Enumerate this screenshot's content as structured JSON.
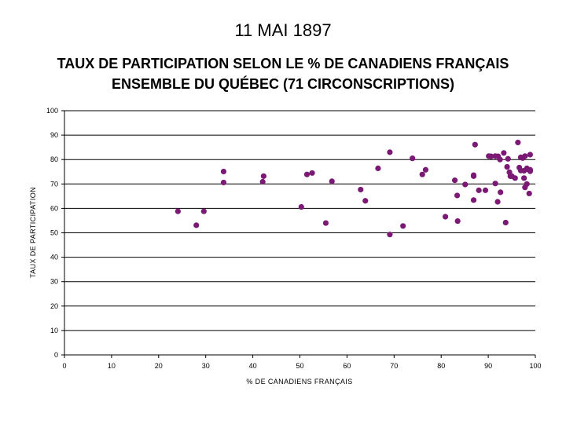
{
  "page": {
    "date_title": "11 MAI 1897",
    "title_line1": "TAUX DE PARTICIPATION SELON LE % DE CANADIENS FRANÇAIS",
    "title_line2": "ENSEMBLE DU QUÉBEC (71 CIRCONSCRIPTIONS)"
  },
  "chart_data": {
    "type": "scatter",
    "title": "TAUX DE PARTICIPATION SELON LE % DE CANADIENS FRANÇAIS ENSEMBLE DU QUÉBEC (71 CIRCONSCRIPTIONS)",
    "xlabel": "% DE CANADIENS FRANÇAIS",
    "ylabel": "TAUX DE PARTICIPATION",
    "xlim": [
      0,
      100
    ],
    "ylim": [
      0,
      100
    ],
    "x_ticks": [
      0,
      10,
      20,
      30,
      40,
      50,
      60,
      70,
      80,
      90,
      100
    ],
    "y_ticks": [
      0,
      10,
      20,
      30,
      40,
      50,
      60,
      70,
      80,
      90,
      100
    ],
    "grid": "horizontal",
    "point_color": "#7b1a74",
    "points": [
      [
        24.1,
        58.8
      ],
      [
        28.0,
        53.1
      ],
      [
        29.6,
        58.8
      ],
      [
        33.8,
        75.1
      ],
      [
        33.8,
        70.6
      ],
      [
        42.1,
        70.9
      ],
      [
        42.3,
        73.2
      ],
      [
        50.3,
        60.6
      ],
      [
        51.5,
        73.9
      ],
      [
        52.6,
        74.5
      ],
      [
        55.5,
        54.0
      ],
      [
        56.8,
        71.1
      ],
      [
        62.9,
        67.7
      ],
      [
        63.9,
        63.1
      ],
      [
        66.6,
        76.4
      ],
      [
        69.1,
        83.0
      ],
      [
        69.1,
        49.3
      ],
      [
        71.9,
        52.8
      ],
      [
        73.9,
        80.5
      ],
      [
        76.0,
        73.9
      ],
      [
        76.7,
        75.8
      ],
      [
        80.9,
        56.6
      ],
      [
        82.9,
        71.5
      ],
      [
        83.4,
        65.3
      ],
      [
        83.5,
        54.8
      ],
      [
        85.1,
        69.8
      ],
      [
        86.9,
        73.6
      ],
      [
        86.9,
        73.2
      ],
      [
        86.9,
        63.4
      ],
      [
        87.2,
        86.1
      ],
      [
        88.0,
        67.4
      ],
      [
        89.4,
        67.4
      ],
      [
        90.1,
        81.4
      ],
      [
        90.6,
        81.3
      ],
      [
        91.5,
        81.4
      ],
      [
        91.5,
        70.2
      ],
      [
        92.0,
        62.7
      ],
      [
        92.1,
        81.3
      ],
      [
        92.5,
        80.0
      ],
      [
        92.6,
        66.6
      ],
      [
        93.3,
        82.7
      ],
      [
        93.7,
        54.2
      ],
      [
        94.0,
        77.0
      ],
      [
        94.2,
        80.3
      ],
      [
        94.5,
        74.8
      ],
      [
        94.7,
        73.2
      ],
      [
        95.0,
        73.2
      ],
      [
        95.7,
        72.4
      ],
      [
        96.3,
        87.0
      ],
      [
        96.6,
        76.7
      ],
      [
        96.9,
        80.9
      ],
      [
        96.9,
        75.5
      ],
      [
        97.3,
        80.6
      ],
      [
        97.6,
        75.4
      ],
      [
        97.6,
        72.4
      ],
      [
        97.8,
        81.4
      ],
      [
        97.8,
        68.6
      ],
      [
        98.2,
        70.0
      ],
      [
        98.2,
        76.4
      ],
      [
        98.6,
        75.8
      ],
      [
        98.7,
        66.1
      ],
      [
        98.9,
        82.0
      ],
      [
        98.9,
        75.2
      ],
      [
        98.9,
        75.8
      ]
    ]
  }
}
